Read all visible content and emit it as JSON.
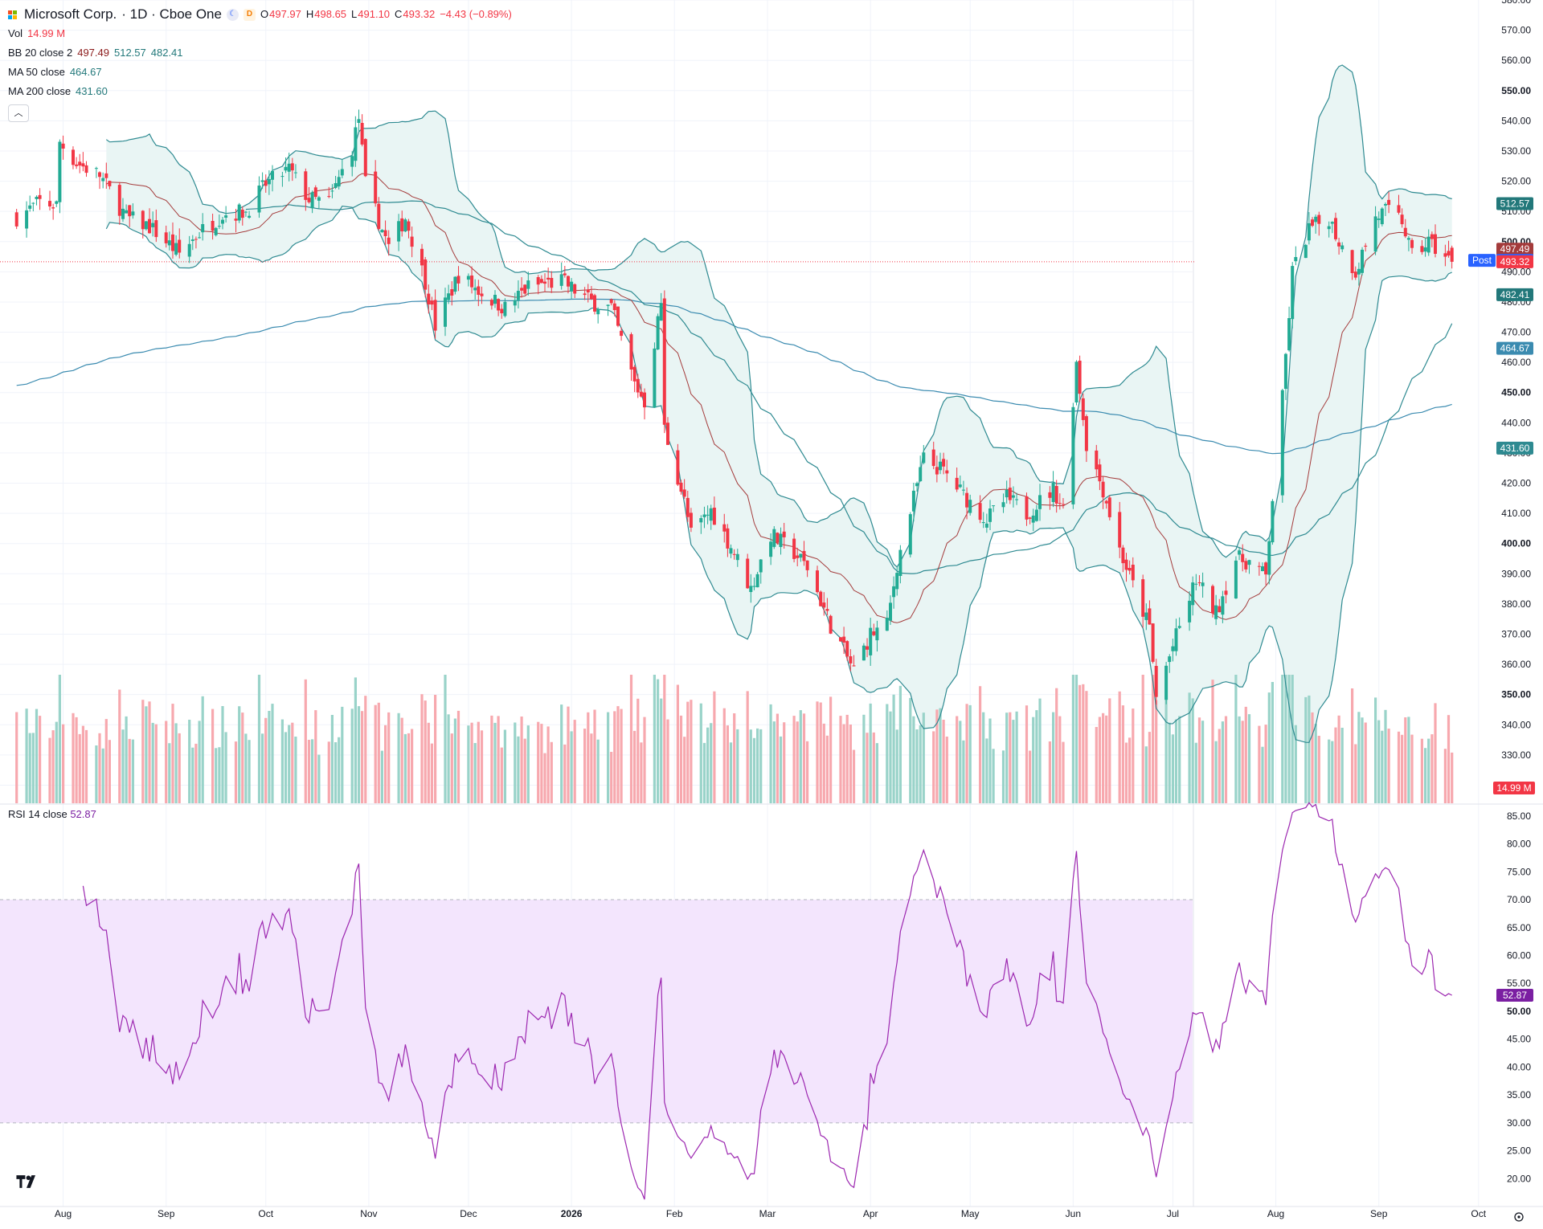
{
  "legend": {
    "symbol_name": "Microsoft Corp.",
    "interval_exchange": "· 1D · Cboe One",
    "badge_d": "D",
    "ohlc": {
      "o_label": "O",
      "o": "497.97",
      "h_label": "H",
      "h": "498.65",
      "l_label": "L",
      "l": "491.10",
      "c_label": "C",
      "c": "493.32",
      "change": "−4.43 (−0.89%)"
    },
    "vol": {
      "label": "Vol",
      "value": "14.99 M"
    },
    "bb": {
      "label": "BB 20 close 2",
      "basis": "497.49",
      "upper": "512.57",
      "lower": "482.41"
    },
    "ma50": {
      "label": "MA 50 close",
      "value": "464.67"
    },
    "ma200": {
      "label": "MA 200 close",
      "value": "431.60"
    },
    "collapse_icon": "chevron-up-icon"
  },
  "rsi_legend": {
    "label": "RSI 14 close",
    "value": "52.87"
  },
  "colors": {
    "up": "#22ab94",
    "down": "#f23645",
    "bb": "#2e8a91",
    "bb_fill": "#e9f5f4",
    "basis": "#a43b3b",
    "ma50": "#2e8a91",
    "ma200": "#3b8bb0",
    "rsi": "#9c27b0",
    "rsi_band": "#f3e5fd"
  },
  "chart_data": {
    "type": "candlestick",
    "price_axis": {
      "min": 314,
      "max": 580,
      "ticks": [
        "580.00",
        "570.00",
        "560.00",
        "550.00",
        "540.00",
        "530.00",
        "520.00",
        "510.00",
        "500.00",
        "490.00",
        "480.00",
        "470.00",
        "460.00",
        "450.00",
        "440.00",
        "430.00",
        "420.00",
        "410.00",
        "400.00",
        "390.00",
        "380.00",
        "370.00",
        "360.00",
        "350.00",
        "340.00",
        "330.00",
        "320.00"
      ],
      "bold_ticks": [
        "550.00",
        "500.00",
        "450.00",
        "400.00",
        "350.00"
      ]
    },
    "time_axis": {
      "labels": [
        {
          "t": "Aug",
          "d": "2025-08-01"
        },
        {
          "t": "Sep",
          "d": "2025-09-01"
        },
        {
          "t": "Oct",
          "d": "2025-10-01"
        },
        {
          "t": "Nov",
          "d": "2025-11-01"
        },
        {
          "t": "Dec",
          "d": "2025-12-01"
        },
        {
          "t": "2026",
          "d": "2026-01-01",
          "bold": true
        },
        {
          "t": "Feb",
          "d": "2026-02-01"
        },
        {
          "t": "Mar",
          "d": "2026-03-01"
        },
        {
          "t": "Apr",
          "d": "2026-04-01"
        },
        {
          "t": "May",
          "d": "2026-05-01"
        },
        {
          "t": "Jun",
          "d": "2026-06-01"
        },
        {
          "t": "Jul",
          "d": "2026-07-01"
        },
        {
          "t": "Aug",
          "d": "2026-08-01"
        },
        {
          "t": "Sep",
          "d": "2026-09-01"
        },
        {
          "t": "Oct",
          "d": "2026-10-01"
        }
      ]
    },
    "close_anchors": [
      [
        "2025-07-18",
        508
      ],
      [
        "2025-07-25",
        513
      ],
      [
        "2025-07-30",
        512
      ],
      [
        "2025-07-31",
        533
      ],
      [
        "2025-08-05",
        526
      ],
      [
        "2025-08-12",
        522
      ],
      [
        "2025-08-20",
        508
      ],
      [
        "2025-08-27",
        505
      ],
      [
        "2025-09-05",
        496
      ],
      [
        "2025-09-11",
        503
      ],
      [
        "2025-09-18",
        509
      ],
      [
        "2025-09-25",
        510
      ],
      [
        "2025-10-01",
        519
      ],
      [
        "2025-10-08",
        524
      ],
      [
        "2025-10-14",
        514
      ],
      [
        "2025-10-20",
        513
      ],
      [
        "2025-10-27",
        531
      ],
      [
        "2025-10-29",
        541
      ],
      [
        "2025-10-31",
        519
      ],
      [
        "2025-11-07",
        498
      ],
      [
        "2025-11-12",
        508
      ],
      [
        "2025-11-18",
        487
      ],
      [
        "2025-11-21",
        472
      ],
      [
        "2025-11-28",
        489
      ],
      [
        "2025-12-05",
        483
      ],
      [
        "2025-12-12",
        478
      ],
      [
        "2025-12-19",
        485
      ],
      [
        "2025-12-29",
        487
      ],
      [
        "2026-01-07",
        480
      ],
      [
        "2026-01-13",
        478
      ],
      [
        "2026-01-20",
        453
      ],
      [
        "2026-01-23",
        447
      ],
      [
        "2026-01-28",
        480
      ],
      [
        "2026-01-29",
        438
      ],
      [
        "2026-02-04",
        414
      ],
      [
        "2026-02-06",
        403
      ],
      [
        "2026-02-12",
        411
      ],
      [
        "2026-02-19",
        397
      ],
      [
        "2026-02-24",
        385
      ],
      [
        "2026-03-02",
        403
      ],
      [
        "2026-03-09",
        397
      ],
      [
        "2026-03-13",
        392
      ],
      [
        "2026-03-20",
        373
      ],
      [
        "2026-03-27",
        358
      ],
      [
        "2026-04-01",
        370
      ],
      [
        "2026-04-06",
        373
      ],
      [
        "2026-04-09",
        393
      ],
      [
        "2026-04-14",
        415
      ],
      [
        "2026-04-17",
        428
      ],
      [
        "2026-04-23",
        424
      ],
      [
        "2026-04-29",
        416
      ],
      [
        "2026-05-06",
        408
      ],
      [
        "2026-05-12",
        415
      ],
      [
        "2026-05-18",
        410
      ],
      [
        "2026-05-26",
        418
      ],
      [
        "2026-05-29",
        412
      ],
      [
        "2026-06-02",
        460
      ],
      [
        "2026-06-05",
        433
      ],
      [
        "2026-06-10",
        418
      ],
      [
        "2026-06-15",
        398
      ],
      [
        "2026-06-19",
        386
      ],
      [
        "2026-06-24",
        372
      ],
      [
        "2026-06-26",
        349
      ],
      [
        "2026-07-01",
        366
      ],
      [
        "2026-07-08",
        388
      ],
      [
        "2026-07-14",
        377
      ],
      [
        "2026-07-20",
        395
      ],
      [
        "2026-07-24",
        394
      ],
      [
        "2026-07-29",
        389
      ],
      [
        "2026-07-31",
        415
      ],
      [
        "2026-08-03",
        448
      ],
      [
        "2026-08-06",
        490
      ],
      [
        "2026-08-11",
        504
      ],
      [
        "2026-08-17",
        508
      ],
      [
        "2026-08-20",
        500
      ],
      [
        "2026-08-25",
        490
      ],
      [
        "2026-08-31",
        508
      ],
      [
        "2026-09-03",
        510
      ],
      [
        "2026-09-08",
        507
      ],
      [
        "2026-09-11",
        495
      ],
      [
        "2026-09-16",
        500
      ],
      [
        "2026-09-21",
        495
      ],
      [
        "2026-09-23",
        493.32
      ]
    ],
    "last_bar": {
      "o": 497.97,
      "h": 498.65,
      "l": 491.1,
      "c": 493.32,
      "change": -4.43,
      "change_pct": -0.89
    },
    "volume": {
      "last": "14.99M",
      "max": 38
    },
    "indicators": {
      "bb_upper": 512.57,
      "bb_basis": 497.49,
      "bb_lower": 482.41,
      "ma50": 464.67,
      "ma200": 431.6,
      "post": 493.78
    },
    "price_tags": [
      {
        "text": "512.57",
        "value": 512.57,
        "color": "#22787a"
      },
      {
        "text": "497.49",
        "value": 497.49,
        "color": "#a43b3b"
      },
      {
        "text": "493.78",
        "value": 493.78,
        "color": "#2962ff",
        "prefix": "Post"
      },
      {
        "text": "493.32",
        "value": 493.32,
        "color": "#f23645"
      },
      {
        "text": "482.41",
        "value": 482.41,
        "color": "#22787a"
      },
      {
        "text": "464.67",
        "value": 464.67,
        "color": "#3b8bb0"
      },
      {
        "text": "431.60",
        "value": 431.6,
        "color": "#2e8a91"
      }
    ],
    "volume_tag": {
      "text": "14.99 M",
      "color": "#f23645"
    },
    "rsi": {
      "period": 14,
      "last": 52.87,
      "overbought": 70,
      "oversold": 30,
      "axis": {
        "min": 15,
        "max": 87,
        "ticks": [
          "85.00",
          "80.00",
          "75.00",
          "70.00",
          "65.00",
          "60.00",
          "55.00",
          "50.00",
          "45.00",
          "40.00",
          "35.00",
          "30.00",
          "25.00",
          "20.00"
        ],
        "bold_ticks": [
          "50.00"
        ]
      },
      "tag": {
        "text": "52.87",
        "color": "#7b1fa2"
      }
    }
  }
}
